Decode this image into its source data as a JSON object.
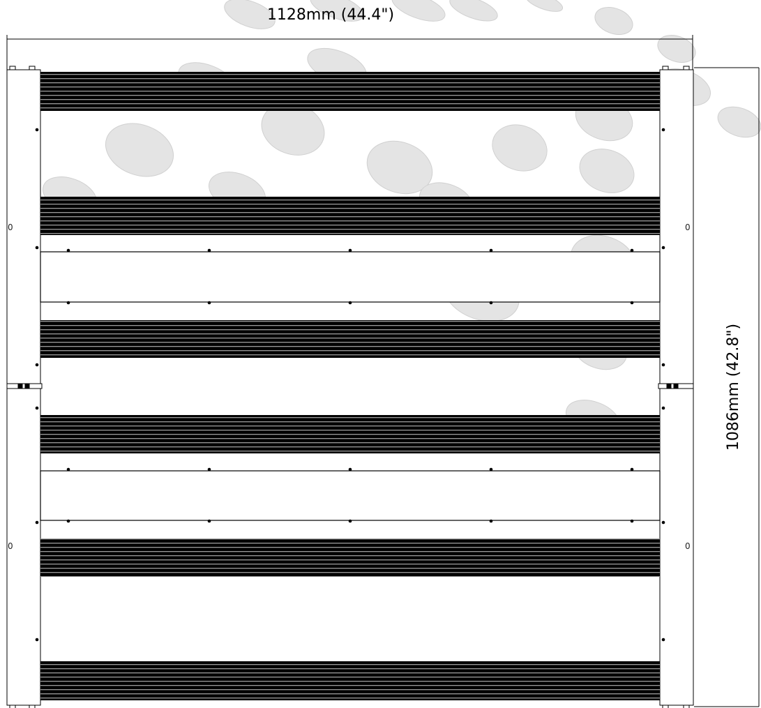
{
  "diagram": {
    "width_label": "1128mm (44.4\")",
    "height_label": "1086mm (42.8\")",
    "panel_mark": "0"
  },
  "colors": {
    "line": "#000000",
    "bar_fill": "#000000",
    "bar_stripe": "#ffffff",
    "watermark": "#e2e2e2",
    "frame_fill": "#ffffff"
  }
}
